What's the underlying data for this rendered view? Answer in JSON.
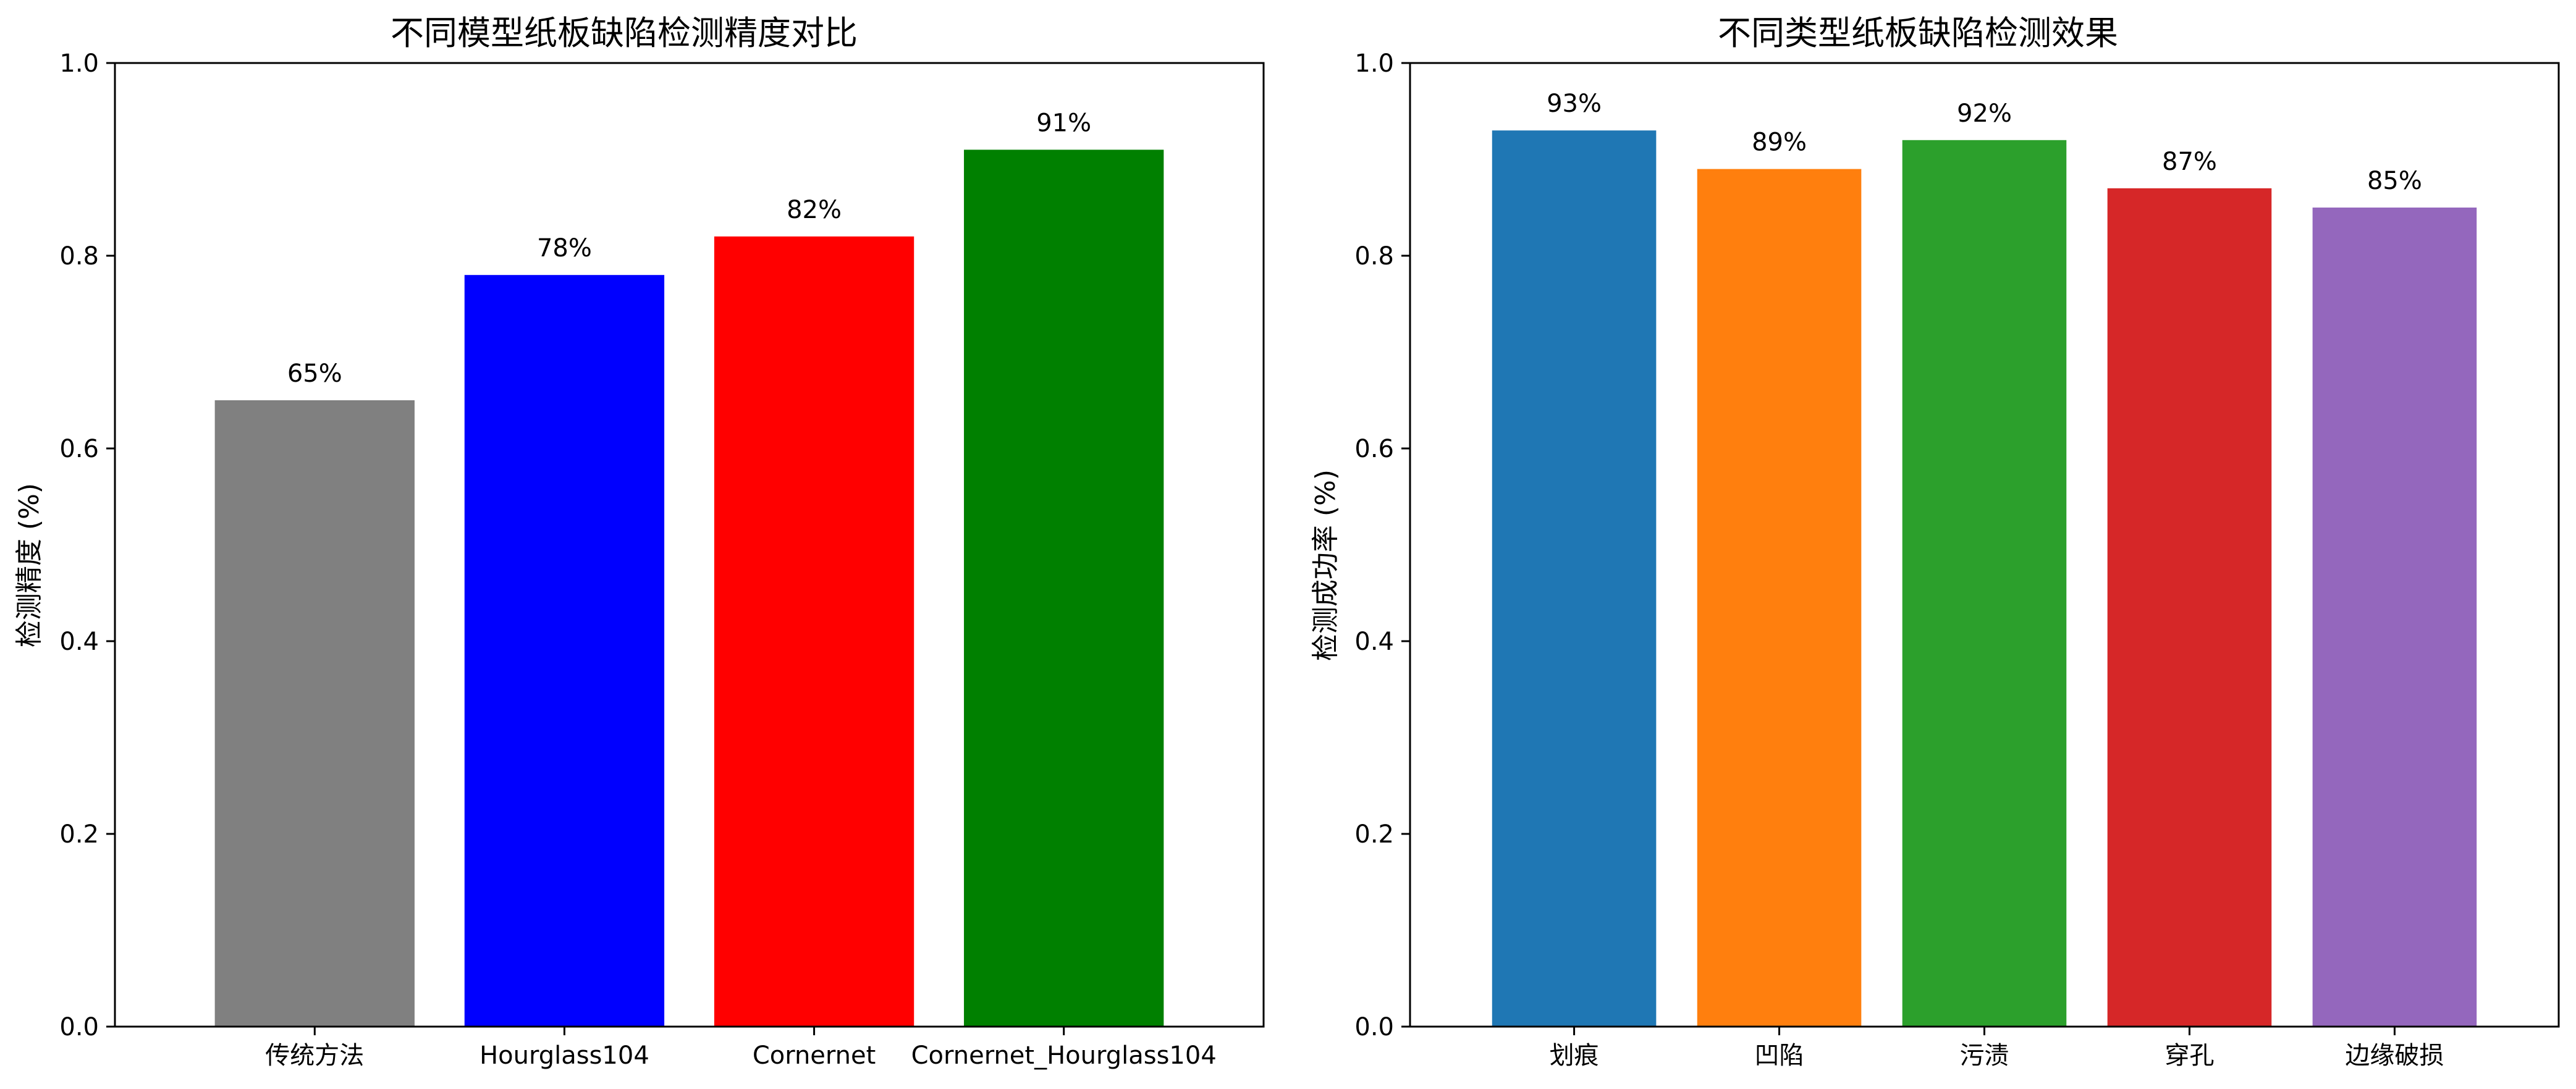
{
  "chart_data": [
    {
      "type": "bar",
      "title": "不同模型纸板缺陷检测精度对比",
      "xlabel": "",
      "ylabel": "检测精度 (%)",
      "ylim": [
        0,
        1.0
      ],
      "yticks": [
        "0.0",
        "0.2",
        "0.4",
        "0.6",
        "0.8",
        "1.0"
      ],
      "categories": [
        "传统方法",
        "Hourglass104",
        "Cornernet",
        "Cornernet_Hourglass104"
      ],
      "values": [
        0.65,
        0.78,
        0.82,
        0.91
      ],
      "value_labels": [
        "65%",
        "78%",
        "82%",
        "91%"
      ],
      "colors": [
        "#808080",
        "#0000ff",
        "#ff0000",
        "#008000"
      ],
      "grid": false
    },
    {
      "type": "bar",
      "title": "不同类型纸板缺陷检测效果",
      "xlabel": "",
      "ylabel": "检测成功率 (%)",
      "ylim": [
        0,
        1.0
      ],
      "yticks": [
        "0.0",
        "0.2",
        "0.4",
        "0.6",
        "0.8",
        "1.0"
      ],
      "categories": [
        "划痕",
        "凹陷",
        "污渍",
        "穿孔",
        "边缘破损"
      ],
      "values": [
        0.93,
        0.89,
        0.92,
        0.87,
        0.85
      ],
      "value_labels": [
        "93%",
        "89%",
        "92%",
        "87%",
        "85%"
      ],
      "colors": [
        "#1f77b4",
        "#ff7f0e",
        "#2ca02c",
        "#d62728",
        "#9467bd"
      ],
      "grid": false
    }
  ]
}
